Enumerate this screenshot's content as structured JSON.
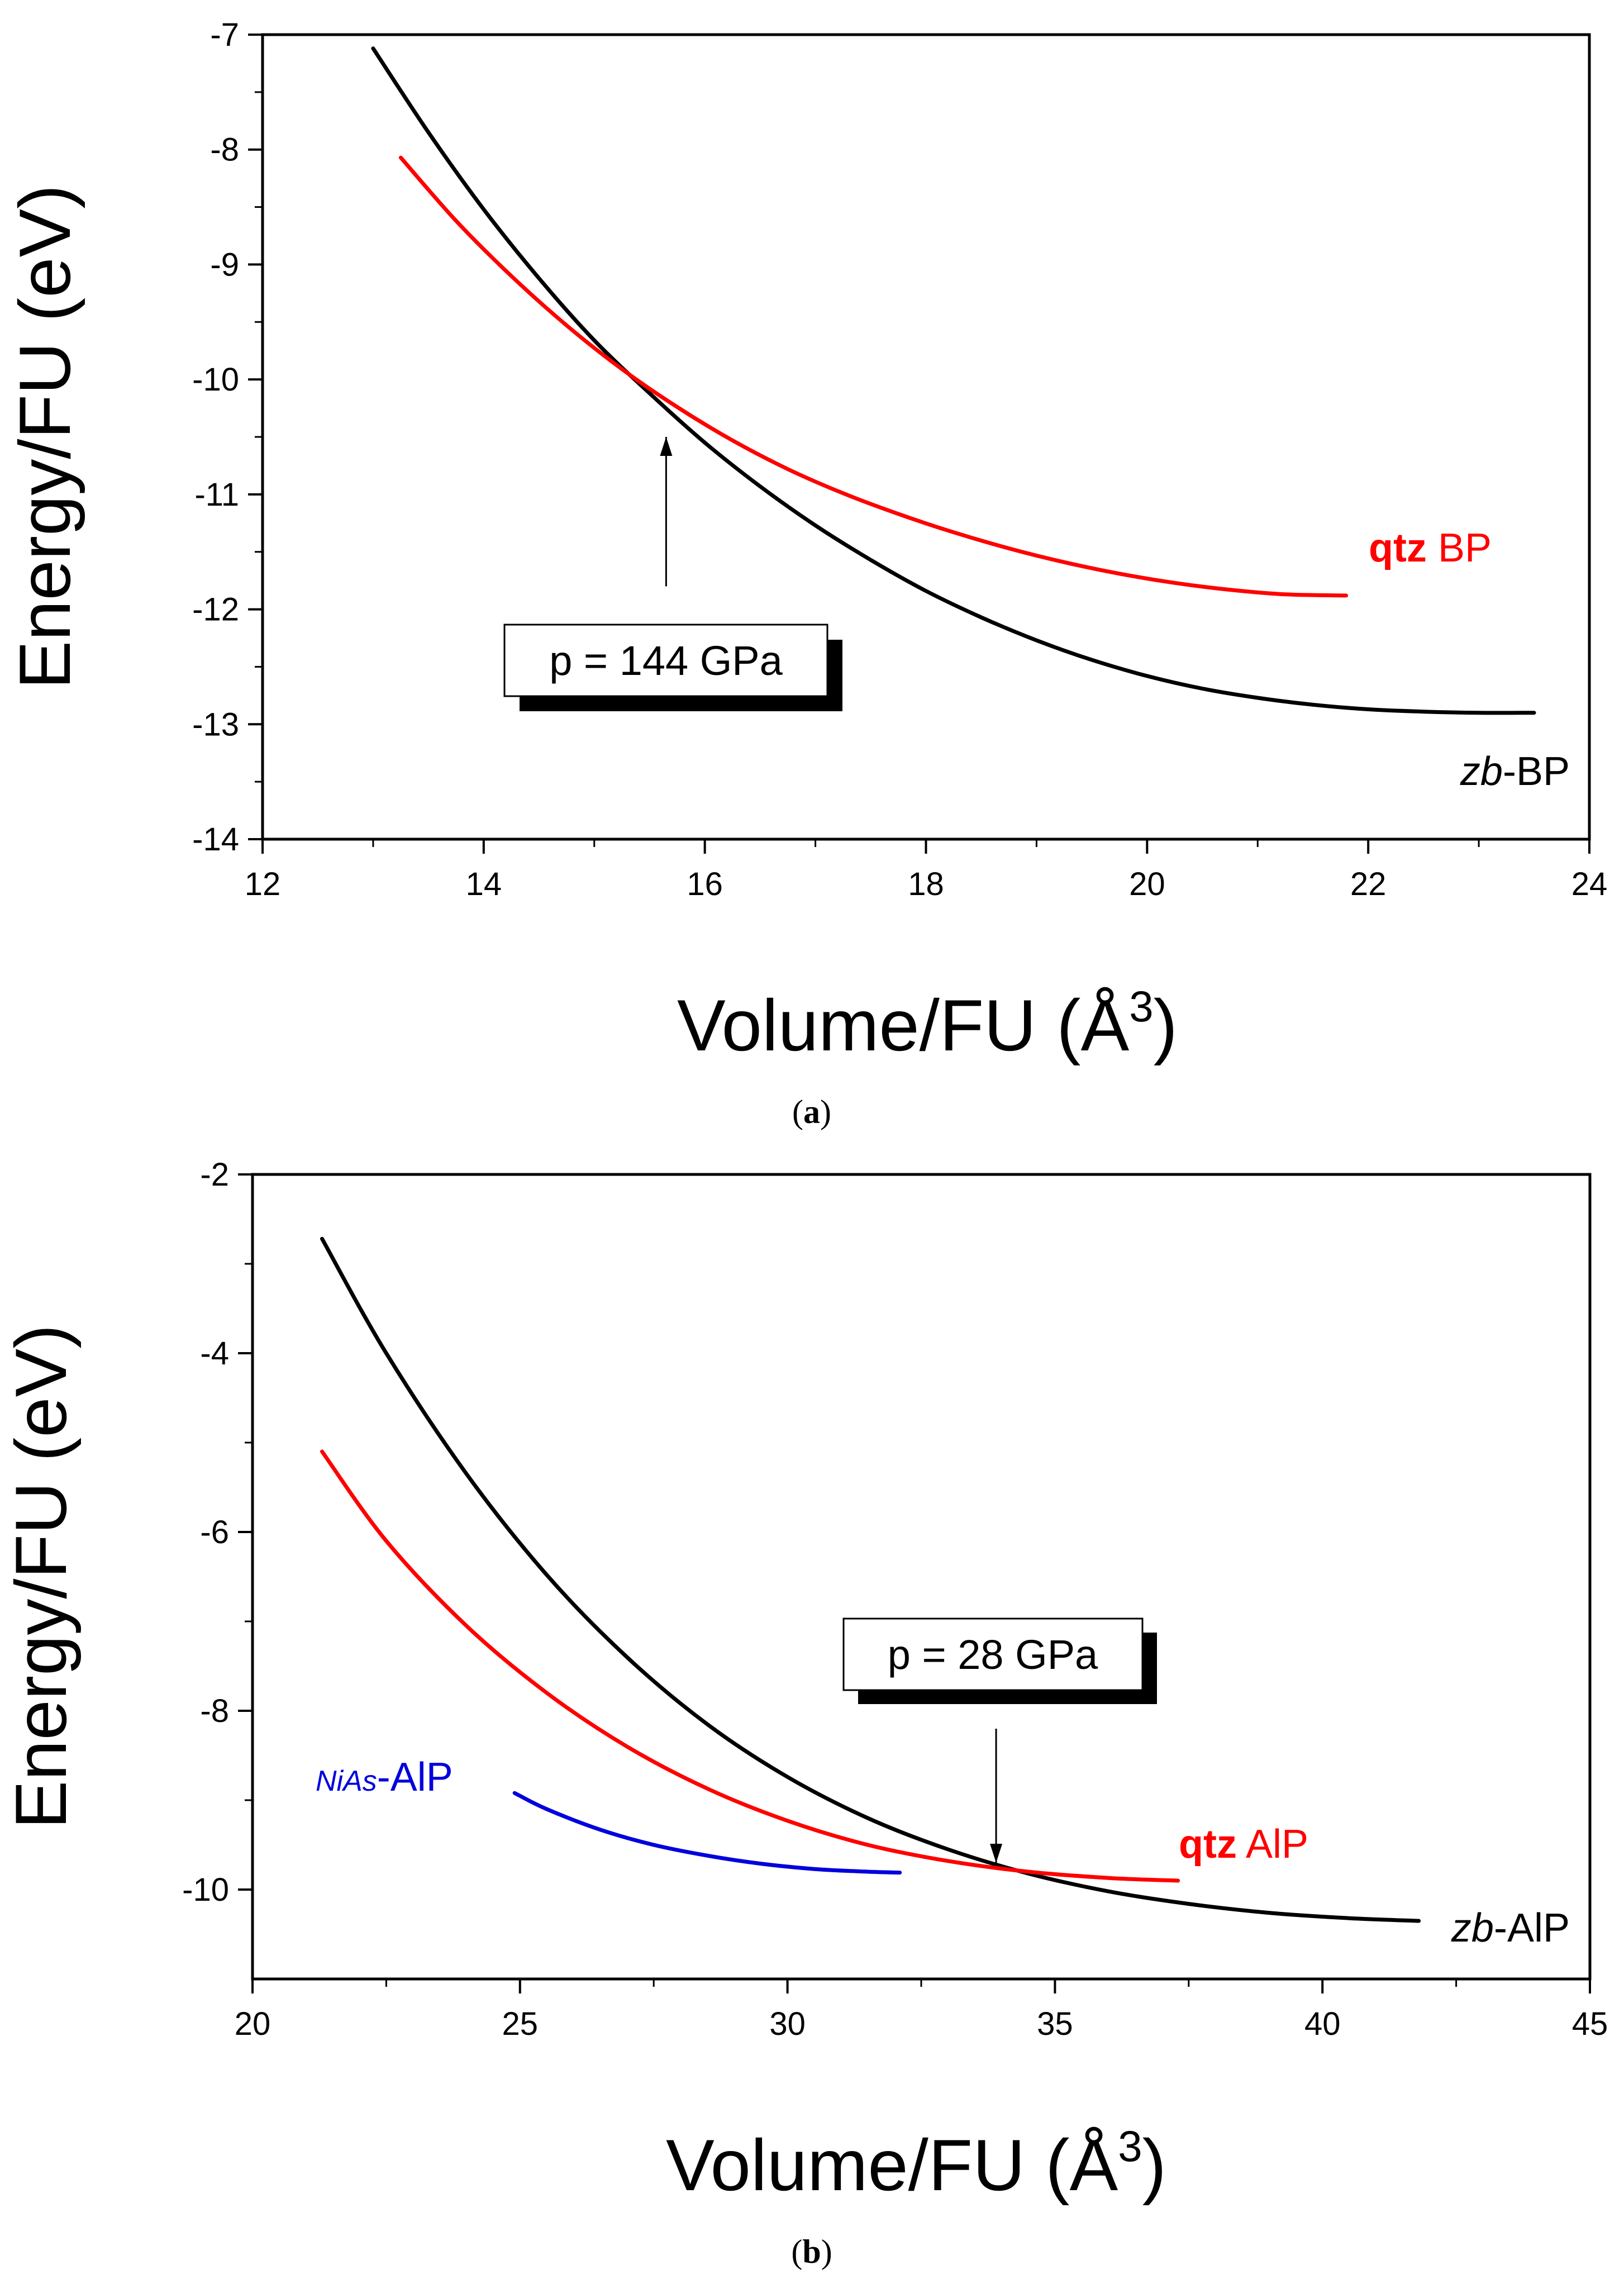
{
  "chart_data": [
    {
      "type": "line",
      "panel_label": "a",
      "xlabel": "Volume/FU",
      "xlabel_unit": "Å",
      "xlabel_unit_sup": "3",
      "ylabel": "Energy/FU (eV)",
      "xlim": [
        12,
        24
      ],
      "ylim": [
        -14,
        -7
      ],
      "xticks": [
        12,
        14,
        16,
        18,
        20,
        22,
        24
      ],
      "xtick_labels": [
        "12",
        "14",
        "16",
        "18",
        "20",
        "22",
        "24"
      ],
      "yticks": [
        -14,
        -13,
        -12,
        -11,
        -10,
        -9,
        -8,
        -7
      ],
      "ytick_labels": [
        "-14",
        "-13",
        "-12",
        "-11",
        "-10",
        "-9",
        "-8",
        "-7"
      ],
      "series": [
        {
          "name": "zb-BP",
          "label_parts": [
            "zb",
            "-BP"
          ],
          "color": "#000000",
          "x": [
            13.0,
            13.5,
            14.0,
            14.5,
            15.0,
            15.5,
            16.0,
            16.5,
            17.0,
            17.5,
            18.0,
            18.5,
            19.0,
            19.5,
            20.0,
            20.5,
            21.0,
            21.5,
            22.0,
            22.5,
            23.0,
            23.5
          ],
          "values": [
            -7.12,
            -7.85,
            -8.52,
            -9.12,
            -9.66,
            -10.12,
            -10.55,
            -10.93,
            -11.27,
            -11.57,
            -11.84,
            -12.07,
            -12.27,
            -12.44,
            -12.58,
            -12.69,
            -12.77,
            -12.83,
            -12.87,
            -12.89,
            -12.9,
            -12.9
          ]
        },
        {
          "name": "qtz BP",
          "label_parts": [
            "qtz",
            " BP"
          ],
          "color": "#ff0000",
          "x": [
            13.25,
            13.75,
            14.25,
            14.75,
            15.25,
            15.75,
            16.25,
            16.75,
            17.25,
            17.75,
            18.25,
            18.75,
            19.25,
            19.75,
            20.25,
            20.75,
            21.25,
            21.8
          ],
          "values": [
            -8.07,
            -8.62,
            -9.1,
            -9.53,
            -9.91,
            -10.24,
            -10.53,
            -10.78,
            -10.99,
            -11.17,
            -11.33,
            -11.47,
            -11.59,
            -11.69,
            -11.77,
            -11.83,
            -11.87,
            -11.88
          ]
        }
      ],
      "annotation": {
        "text": "p = 144 GPa",
        "arrow_tip": [
          15.65,
          -10.5
        ],
        "arrow_tail": [
          15.65,
          -11.8
        ],
        "box_center": [
          16.35,
          -12.4
        ]
      }
    },
    {
      "type": "line",
      "panel_label": "b",
      "xlabel": "Volume/FU",
      "xlabel_unit": "Å",
      "xlabel_unit_sup": "3",
      "ylabel": "Energy/FU (eV)",
      "xlim": [
        20,
        45
      ],
      "ylim": [
        -11,
        -2
      ],
      "xticks": [
        20,
        25,
        30,
        35,
        40,
        45
      ],
      "xtick_labels": [
        "20",
        "25",
        "30",
        "35",
        "40",
        "45"
      ],
      "yticks": [
        -10,
        -8,
        -6,
        -4,
        -2
      ],
      "ytick_labels": [
        "-10",
        "-8",
        "-6",
        "-4",
        "-2"
      ],
      "series": [
        {
          "name": "zb-AlP",
          "label_parts": [
            "zb",
            "-AlP"
          ],
          "color": "#000000",
          "x": [
            21.3,
            22.5,
            24.0,
            25.5,
            27.0,
            28.5,
            30.0,
            31.5,
            33.0,
            34.5,
            36.0,
            37.5,
            39.0,
            40.5,
            41.8
          ],
          "values": [
            -2.72,
            -4.0,
            -5.35,
            -6.48,
            -7.4,
            -8.15,
            -8.74,
            -9.2,
            -9.55,
            -9.82,
            -10.02,
            -10.16,
            -10.26,
            -10.32,
            -10.35
          ]
        },
        {
          "name": "qtz AlP",
          "label_parts": [
            "qtz",
            " AlP"
          ],
          "color": "#ff0000",
          "x": [
            21.3,
            22.5,
            24.0,
            25.5,
            27.0,
            28.5,
            30.0,
            31.5,
            33.0,
            34.5,
            36.0,
            37.3
          ],
          "values": [
            -5.1,
            -6.1,
            -7.05,
            -7.8,
            -8.4,
            -8.87,
            -9.23,
            -9.5,
            -9.68,
            -9.8,
            -9.87,
            -9.9
          ]
        },
        {
          "name": "NiAs-AlP",
          "label_parts": [
            "NiAs",
            "-AlP"
          ],
          "color": "#0000dd",
          "x": [
            24.9,
            25.5,
            26.5,
            27.5,
            28.5,
            29.5,
            30.5,
            31.5,
            32.1
          ],
          "values": [
            -8.92,
            -9.1,
            -9.33,
            -9.5,
            -9.62,
            -9.71,
            -9.77,
            -9.8,
            -9.81
          ]
        }
      ],
      "annotation": {
        "text": "p = 28 GPa",
        "arrow_tip": [
          33.9,
          -9.7
        ],
        "arrow_tail": [
          33.9,
          -8.2
        ],
        "box_center": [
          34.0,
          -7.6
        ]
      }
    }
  ]
}
